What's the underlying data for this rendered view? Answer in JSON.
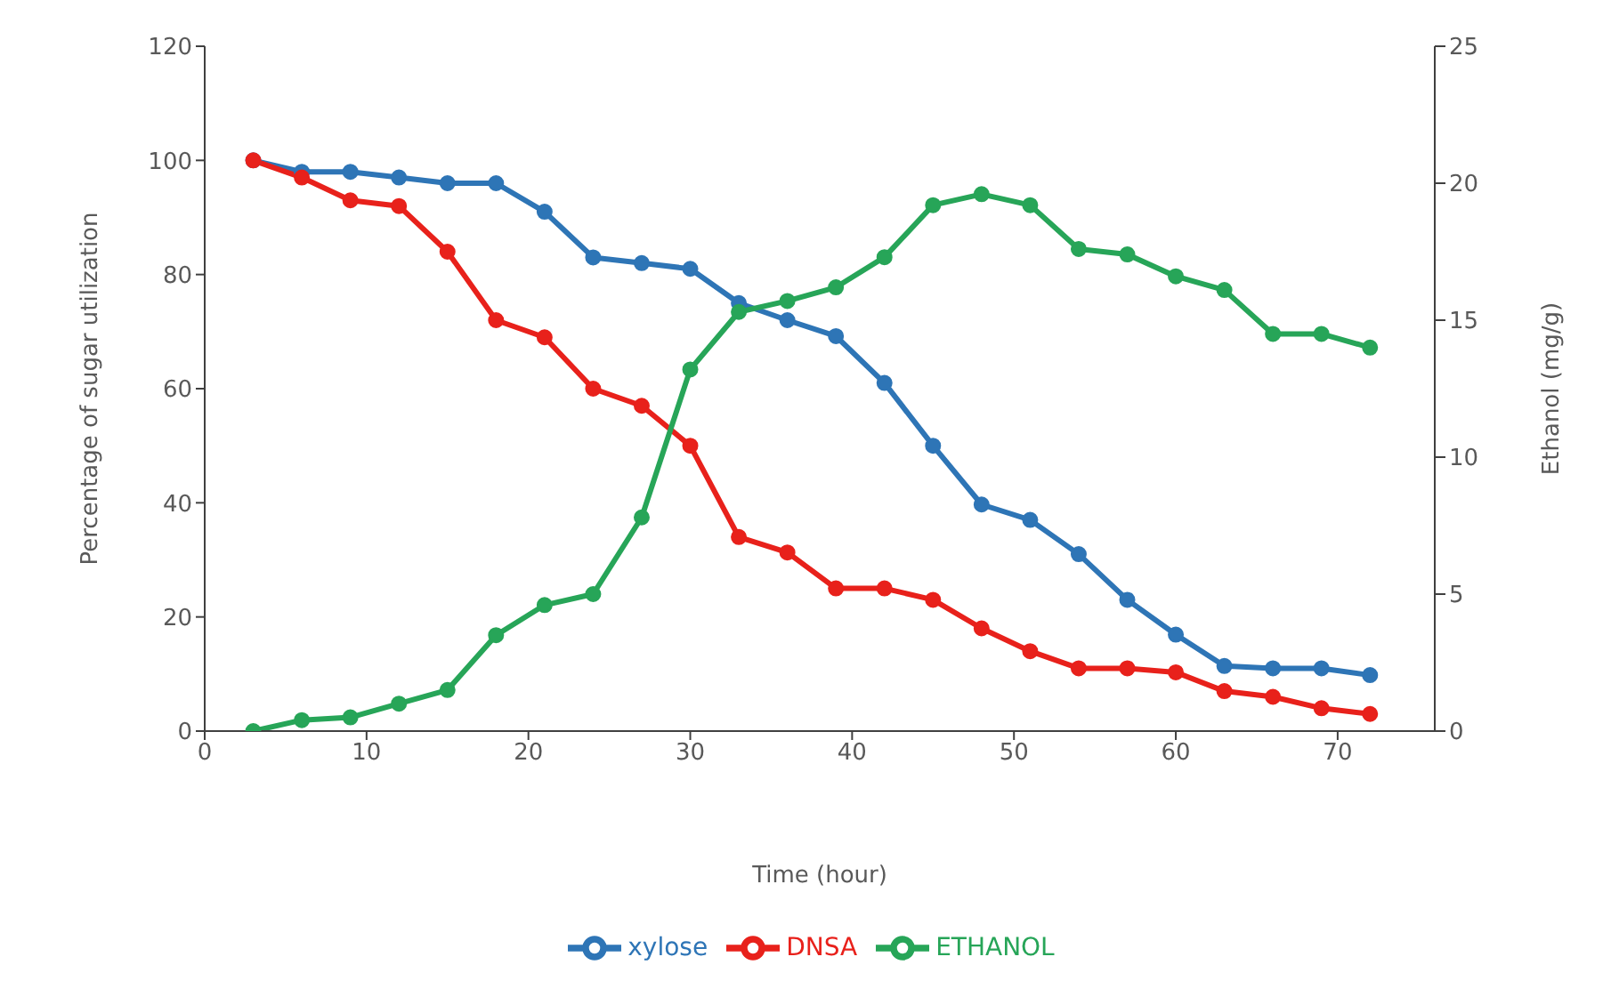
{
  "chart_data": {
    "type": "line",
    "xlabel": "Time (hour)",
    "ylabel": "Percentage of sugar utilization",
    "y2label": "Ethanol (mg/g)",
    "x": [
      3,
      6,
      9,
      12,
      15,
      18,
      21,
      24,
      27,
      30,
      33,
      36,
      39,
      42,
      45,
      48,
      51,
      54,
      57,
      60,
      63,
      66,
      69,
      72
    ],
    "series": [
      {
        "name": "xylose",
        "color": "#2e75b6",
        "values": [
          100,
          98,
          98,
          97,
          96,
          96,
          91,
          83,
          82,
          81,
          75,
          72,
          69.2,
          61,
          50,
          39.7,
          37,
          31,
          23,
          16.9,
          11.4,
          11,
          11,
          9.8
        ]
      },
      {
        "name": "DNSA",
        "color": "#e8211b",
        "values": [
          100,
          97,
          93,
          92,
          84,
          72,
          69,
          60,
          57,
          50,
          34,
          31.3,
          25,
          25,
          23,
          18,
          14,
          11,
          11,
          10.3,
          7,
          6,
          4,
          3
        ]
      },
      {
        "name": "ETHANOL",
        "color": "#27a558",
        "axis": "y2",
        "values": [
          0,
          0.4,
          0.5,
          1,
          1.5,
          3.5,
          4.6,
          5,
          7.8,
          13.2,
          15.3,
          15.7,
          16.2,
          17.3,
          19.2,
          19.6,
          19.2,
          17.6,
          17.4,
          16.6,
          16.1,
          14.5,
          14.5,
          14
        ]
      }
    ],
    "xlim": [
      0,
      76
    ],
    "xticks": [
      0,
      10,
      20,
      30,
      40,
      50,
      60,
      70
    ],
    "ylim": [
      0,
      120
    ],
    "yticks": [
      0,
      20,
      40,
      60,
      80,
      100,
      120
    ],
    "y2lim": [
      0,
      25
    ],
    "y2ticks": [
      0,
      5,
      10,
      15,
      20,
      25
    ],
    "legend": "bottom",
    "marker": "circle",
    "line_style": "solid"
  }
}
